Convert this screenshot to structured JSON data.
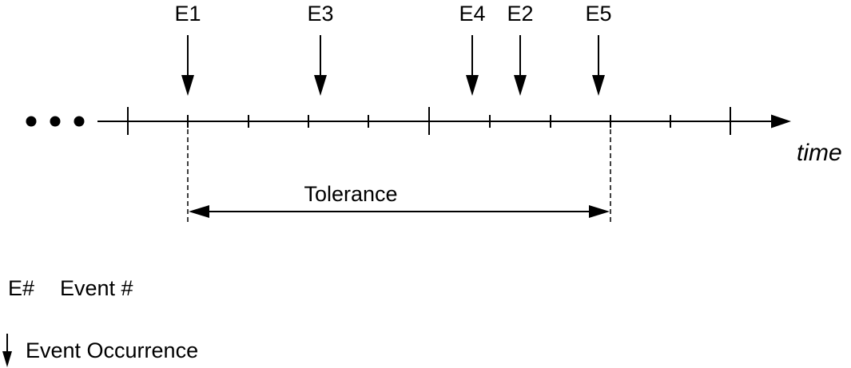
{
  "timeline": {
    "axis_label": "time",
    "ellipsis": "• • •"
  },
  "events": [
    {
      "label": "E1"
    },
    {
      "label": "E3"
    },
    {
      "label": "E4"
    },
    {
      "label": "E2"
    },
    {
      "label": "E5"
    }
  ],
  "tolerance": {
    "label": "Tolerance"
  },
  "legend": {
    "symbol_text": "E#",
    "symbol_desc": "Event #",
    "arrow_desc": "Event Occurrence"
  },
  "colors": {
    "ink": "#000000",
    "background": "#ffffff"
  }
}
